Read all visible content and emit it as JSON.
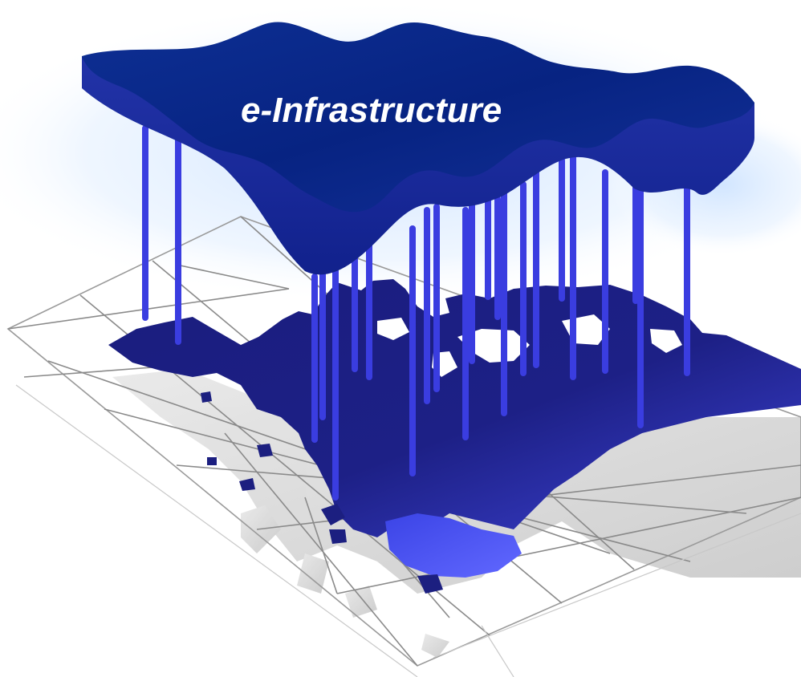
{
  "diagram": {
    "title": "e-Infrastructure",
    "colors": {
      "background": "#ffffff",
      "sky_glow": "#dcecff",
      "canopy_top": "#0e2a8a",
      "canopy_side": "#1a2f9c",
      "pillar": "#3d3ee0",
      "land_dark": "#161a78",
      "land_light": "#4f56f0",
      "grid_line": "#7f7f7f",
      "shadow": "#d6d6d6"
    }
  }
}
